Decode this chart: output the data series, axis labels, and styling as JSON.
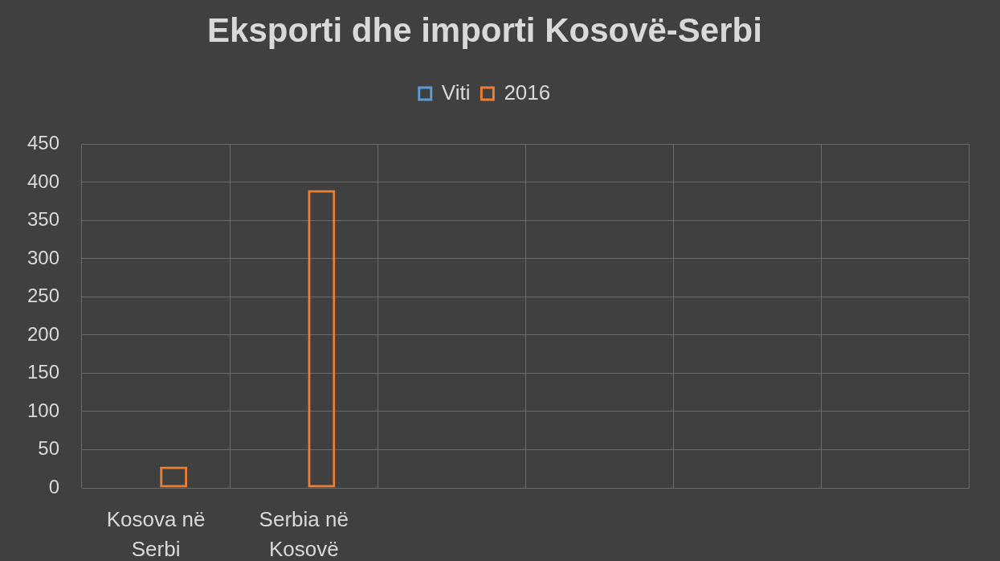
{
  "chart_data": {
    "type": "bar",
    "title": "Eksporti dhe importi Kosovë-Serbi",
    "categories": [
      "Kosova në Serbi",
      "Serbia në Kosovë",
      null,
      null,
      null,
      null
    ],
    "series": [
      {
        "name": "Viti",
        "color": "#5b9bd5",
        "values": [
          null,
          null,
          null,
          null,
          null,
          null
        ]
      },
      {
        "name": "2016",
        "color": "#ed7d31",
        "values": [
          28,
          390,
          null,
          null,
          null,
          null
        ]
      }
    ],
    "ylim": [
      0,
      450
    ],
    "yticks": [
      0,
      50,
      100,
      150,
      200,
      250,
      300,
      350,
      400,
      450
    ],
    "grid": true,
    "legend": "top"
  }
}
